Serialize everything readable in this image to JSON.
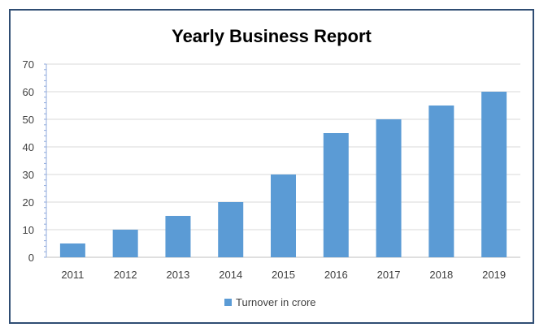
{
  "chart_data": {
    "type": "bar",
    "title": "Yearly Business Report",
    "xlabel": "",
    "ylabel": "",
    "categories": [
      "2011",
      "2012",
      "2013",
      "2014",
      "2015",
      "2016",
      "2017",
      "2018",
      "2019"
    ],
    "series": [
      {
        "name": "Turnover in crore",
        "values": [
          5,
          10,
          15,
          20,
          30,
          45,
          50,
          55,
          60
        ],
        "color": "#5b9bd5"
      }
    ],
    "ylim": [
      0,
      70
    ],
    "yticks": [
      "0",
      "10",
      "20",
      "30",
      "40",
      "50",
      "60",
      "70"
    ],
    "grid": true,
    "legend_position": "bottom"
  }
}
